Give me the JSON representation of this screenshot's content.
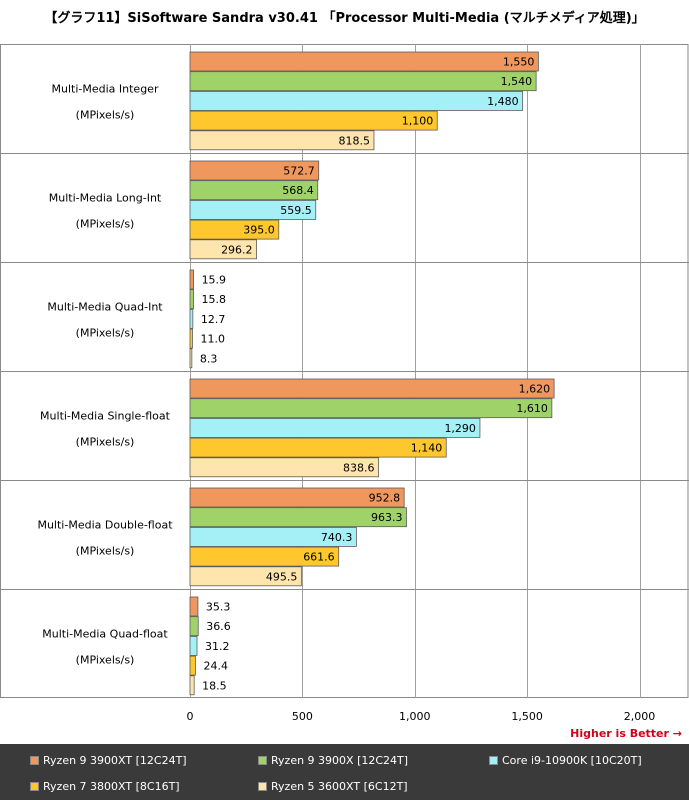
{
  "title": "【グラフ11】SiSoftware Sandra v30.41 「Processor Multi-Media (マルチメディア処理)」",
  "higher_is_better": "Higher is Better →",
  "chart_data": {
    "type": "bar",
    "orientation": "horizontal",
    "title": "【グラフ11】SiSoftware Sandra v30.41 「Processor Multi-Media (マルチメディア処理)」",
    "xlim": [
      0,
      2100
    ],
    "xticks": [
      0,
      500,
      1000,
      1500,
      2000
    ],
    "xtick_labels": [
      "0",
      "500",
      "1,000",
      "1,500",
      "2,000"
    ],
    "grid": "vertical",
    "legend_position": "bottom",
    "groups": [
      {
        "label": "Multi-Media Integer",
        "unit": "(MPixels/s)",
        "values": [
          1550,
          1540,
          1480,
          1100,
          818.5
        ],
        "labels": [
          "1,550",
          "1,540",
          "1,480",
          "1,100",
          "818.5"
        ]
      },
      {
        "label": "Multi-Media Long-Int",
        "unit": "(MPixels/s)",
        "values": [
          572.7,
          568.4,
          559.5,
          395.0,
          296.2
        ],
        "labels": [
          "572.7",
          "568.4",
          "559.5",
          "395.0",
          "296.2"
        ]
      },
      {
        "label": "Multi-Media Quad-Int",
        "unit": "(MPixels/s)",
        "values": [
          15.9,
          15.8,
          12.7,
          11.0,
          8.3
        ],
        "labels": [
          "15.9",
          "15.8",
          "12.7",
          "11.0",
          "8.3"
        ]
      },
      {
        "label": "Multi-Media Single-float",
        "unit": "(MPixels/s)",
        "values": [
          1620,
          1610,
          1290,
          1140,
          838.6
        ],
        "labels": [
          "1,620",
          "1,610",
          "1,290",
          "1,140",
          "838.6"
        ]
      },
      {
        "label": "Multi-Media Double-float",
        "unit": "(MPixels/s)",
        "values": [
          952.8,
          963.3,
          740.3,
          661.6,
          495.5
        ],
        "labels": [
          "952.8",
          "963.3",
          "740.3",
          "661.6",
          "495.5"
        ]
      },
      {
        "label": "Multi-Media Quad-float",
        "unit": "(MPixels/s)",
        "values": [
          35.3,
          36.6,
          31.2,
          24.4,
          18.5
        ],
        "labels": [
          "35.3",
          "36.6",
          "31.2",
          "24.4",
          "18.5"
        ]
      }
    ],
    "series": [
      {
        "name": "Ryzen 9 3900XT [12C24T]",
        "color": "#f0975d"
      },
      {
        "name": "Ryzen 9 3900X [12C24T]",
        "color": "#9fd36a"
      },
      {
        "name": "Core i9-10900K [10C20T]",
        "color": "#a5f0f7"
      },
      {
        "name": "Ryzen 7 3800XT [8C16T]",
        "color": "#ffc72e"
      },
      {
        "name": "Ryzen 5 3600XT [6C12T]",
        "color": "#fde5ad"
      }
    ]
  }
}
